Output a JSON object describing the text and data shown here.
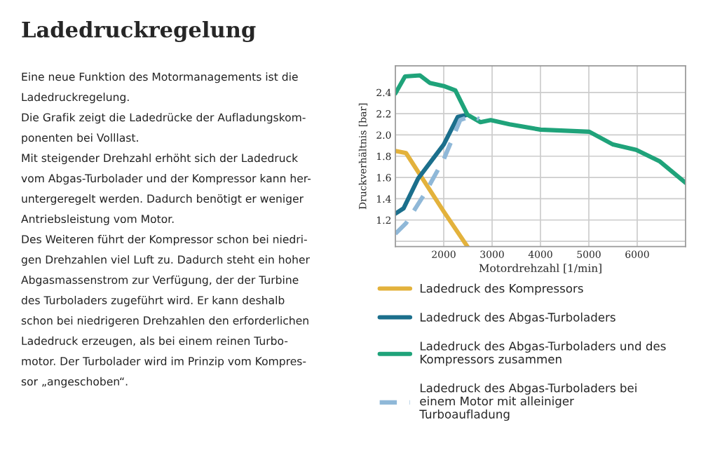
{
  "chart_data": {
    "type": "line",
    "title": "Ladedruckregelung",
    "xlabel": "Motordrehzahl [1/min]",
    "ylabel": "Druckverhältnis [bar]",
    "xlim": [
      1000,
      7000
    ],
    "xticks": [
      {
        "value": 1000,
        "label": null
      },
      2000,
      3000,
      4000,
      5000,
      6000,
      {
        "value": 7000,
        "label": null
      }
    ],
    "ylim": [
      0.95,
      2.65
    ],
    "yticks": [
      {
        "value": 1.0,
        "label": null
      },
      1.2,
      1.4,
      1.6,
      1.8,
      {
        "value": 2.0,
        "label": "2.0"
      },
      2.2,
      2.4
    ],
    "grid": true,
    "legend": "bottom",
    "series": [
      {
        "name": "Ladedruck des Kompressors",
        "color": "#e3b23c",
        "x": [
          1000,
          1220,
          1560,
          2000,
          2490
        ],
        "values": [
          1.85,
          1.83,
          1.59,
          1.28,
          0.95
        ]
      },
      {
        "name": "Ladedruck des Abgas-Turboladers",
        "color": "#1b6f8c",
        "x": [
          1000,
          1170,
          1470,
          2000,
          2290,
          2490
        ],
        "values": [
          1.26,
          1.31,
          1.59,
          1.91,
          2.17,
          2.19
        ]
      },
      {
        "name": "Ladedruck des Abgas-Turboladers und des Kompressors zusammen",
        "color": "#1fa37a",
        "x": [
          1000,
          1200,
          1510,
          1710,
          2000,
          2240,
          2490,
          2760,
          2970,
          3360,
          4000,
          5010,
          5500,
          5980,
          6470,
          7000
        ],
        "values": [
          2.39,
          2.55,
          2.56,
          2.49,
          2.46,
          2.42,
          2.19,
          2.12,
          2.14,
          2.1,
          2.05,
          2.03,
          1.91,
          1.86,
          1.75,
          1.55
        ]
      },
      {
        "name": "Ladedruck des Abgas-Turboladers bei einem Motor mit alleiniger Turboaufladung",
        "color": "#8fb8d8",
        "line_style": "dashed",
        "x": [
          1000,
          1220,
          1610,
          2000,
          2340,
          2580,
          2730
        ],
        "values": [
          1.07,
          1.17,
          1.45,
          1.77,
          2.14,
          2.18,
          2.15
        ]
      }
    ],
    "annotations": [
      "Eine neue Funktion des Motormanagements ist die",
      "Ladedruckregelung.",
      "Die Grafik zeigt die Ladedrücke der Aufladungskom-",
      "ponenten bei Volllast.",
      "Mit steigender Drehzahl erhöht sich der Ladedruck",
      "vom Abgas-Turbolader und der Kompressor kann her-",
      "untergeregelt werden. Dadurch benötigt er weniger",
      "Antriebsleistung vom Motor.",
      "Des Weiteren führt der Kompressor schon bei niedri-",
      "gen Drehzahlen viel Luft zu. Dadurch steht ein hoher",
      "Abgasmassenstrom zur Verfügung, der der Turbine",
      "des Turboladers zugeführt wird. Er kann deshalb",
      "schon bei niedrigeren Drehzahlen den erforderlichen",
      "Ladedruck erzeugen, als bei einem reinen Turbo-",
      "motor. Der Turbolader wird im Prinzip vom Kompres-",
      "sor „angeschoben“."
    ]
  }
}
